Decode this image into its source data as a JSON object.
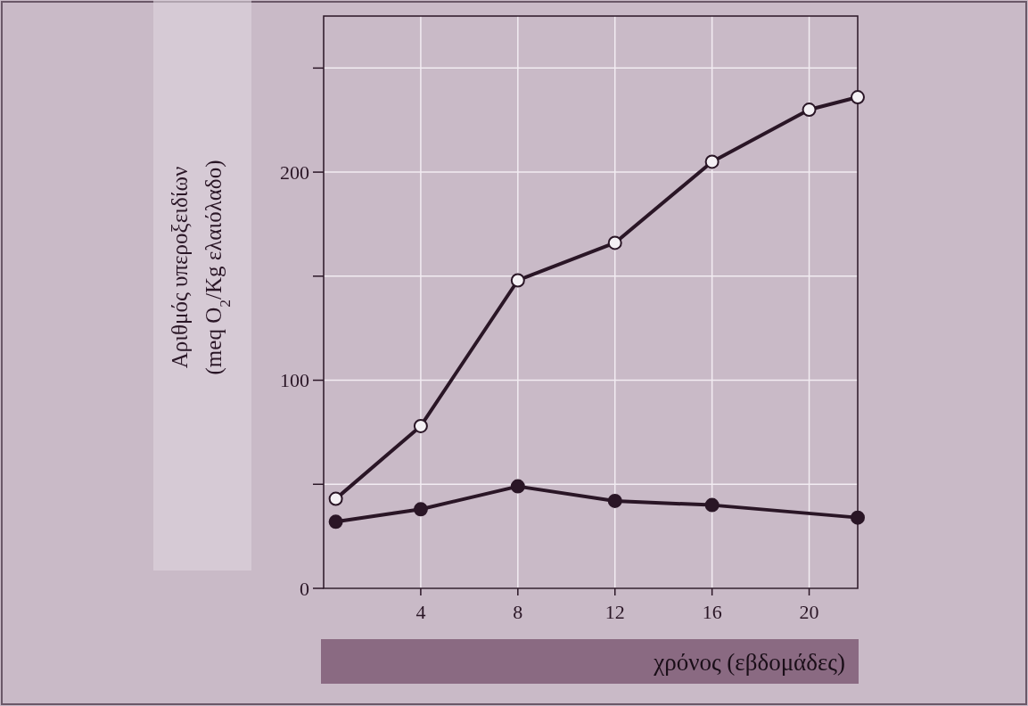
{
  "chart_data": {
    "type": "line",
    "xlabel": "χρόνος (εβδομάδες)",
    "ylabel": "Αριθμός υπεροξειδίων (meq O$_{2}$/Kg ελαιόλαδο)",
    "series": [
      {
        "color": "#2a1626",
        "x": [
          0.5,
          4,
          8,
          12,
          16,
          20,
          22
        ],
        "values": [
          43,
          78,
          148,
          166,
          205,
          230,
          236
        ]
      },
      {
        "color": "#2a1626",
        "x": [
          0.5,
          4,
          8,
          12,
          16,
          22
        ],
        "values": [
          32,
          38,
          49,
          42,
          40,
          34
        ]
      }
    ],
    "xlim": [
      0,
      22
    ],
    "xticks": [
      4,
      8,
      12,
      16,
      20
    ],
    "ylim": [
      0,
      275
    ],
    "yticks": [
      0,
      {
        "value": 50,
        "label": null
      },
      100,
      {
        "value": 150,
        "label": null
      },
      200,
      {
        "value": 250,
        "label": null
      }
    ],
    "grid": true,
    "marker": "circle",
    "line_style": "solid"
  }
}
